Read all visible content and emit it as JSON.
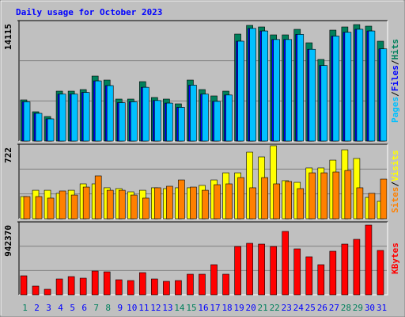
{
  "chart_data": [
    {
      "type": "bar",
      "title": "Daily usage for October 2023",
      "legend_separator": "/",
      "ylim": [
        0,
        14115
      ],
      "yticks": [
        14115
      ],
      "series": [
        {
          "name": "Hits",
          "color": "#00805c",
          "values": [
            4829,
            3436,
            2879,
            5850,
            5850,
            6036,
            7615,
            7150,
            4922,
            4922,
            6965,
            5107,
            4922,
            4364,
            7150,
            6036,
            5293,
            5850,
            12536,
            13557,
            13372,
            12443,
            12443,
            13093,
            11515,
            9565,
            13000,
            13372,
            13650,
            13465,
            11700
          ]
        },
        {
          "name": "Files",
          "color": "#0000ff",
          "values": [
            4600,
            3250,
            2600,
            5500,
            5500,
            5700,
            7050,
            6500,
            4500,
            4600,
            6300,
            4750,
            4450,
            3950,
            6550,
            5500,
            4650,
            5400,
            11700,
            13200,
            12900,
            11900,
            11900,
            12500,
            10750,
            8850,
            12300,
            12750,
            13100,
            12900,
            10800
          ]
        },
        {
          "name": "Pages",
          "color": "#00c0ff",
          "values": [
            4600,
            3250,
            2600,
            5500,
            5500,
            5700,
            7050,
            6500,
            4500,
            4600,
            6300,
            4750,
            4450,
            3950,
            6550,
            5500,
            4650,
            5400,
            11700,
            13200,
            12900,
            11900,
            11900,
            12500,
            10750,
            8850,
            12300,
            12750,
            13100,
            12900,
            10800
          ]
        }
      ]
    },
    {
      "type": "bar",
      "ylim": [
        0,
        722
      ],
      "yticks": [
        722
      ],
      "series": [
        {
          "name": "Visits",
          "color": "#ffff00",
          "values": [
            215,
            276,
            276,
            246,
            276,
            338,
            338,
            300,
            292,
            261,
            276,
            300,
            292,
            300,
            300,
            323,
            376,
            445,
            445,
            645,
            599,
            707,
            369,
            353,
            492,
            492,
            568,
            668,
            584,
            207,
            169
          ]
        },
        {
          "name": "Sites",
          "color": "#ff8000",
          "values": [
            215,
            215,
            200,
            269,
            230,
            307,
            415,
            276,
            276,
            230,
            200,
            300,
            315,
            376,
            307,
            276,
            330,
            338,
            399,
            300,
            399,
            338,
            361,
            292,
            445,
            445,
            453,
            468,
            300,
            246,
            384
          ]
        }
      ]
    },
    {
      "type": "bar",
      "ylim": [
        0,
        942370
      ],
      "yticks": [
        942370
      ],
      "categories": [
        "1",
        "2",
        "3",
        "4",
        "5",
        "6",
        "7",
        "8",
        "9",
        "10",
        "11",
        "12",
        "13",
        "14",
        "15",
        "16",
        "17",
        "18",
        "19",
        "20",
        "21",
        "22",
        "23",
        "24",
        "25",
        "26",
        "27",
        "28",
        "29",
        "30",
        "31"
      ],
      "category_colors": [
        "#00805c",
        "#0000ff",
        "#0000ff",
        "#0000ff",
        "#0000ff",
        "#0000ff",
        "#00805c",
        "#00805c",
        "#0000ff",
        "#0000ff",
        "#0000ff",
        "#0000ff",
        "#0000ff",
        "#00805c",
        "#00805c",
        "#0000ff",
        "#0000ff",
        "#0000ff",
        "#0000ff",
        "#0000ff",
        "#00805c",
        "#00805c",
        "#0000ff",
        "#0000ff",
        "#0000ff",
        "#0000ff",
        "#0000ff",
        "#00805c",
        "#00805c",
        "#0000ff",
        "#0000ff"
      ],
      "series": [
        {
          "name": "KBytes",
          "color": "#ff0000",
          "values": [
            245832,
            112673,
            71701,
            204860,
            235589,
            215103,
            307290,
            297047,
            194617,
            184374,
            286804,
            204860,
            174131,
            184374,
            266318,
            266318,
            389234,
            266318,
            624823,
            665795,
            655552,
            624823,
            819440,
            594094,
            491664,
            389234,
            563365,
            655552,
            717010,
            901384,
            573608
          ]
        }
      ]
    }
  ]
}
